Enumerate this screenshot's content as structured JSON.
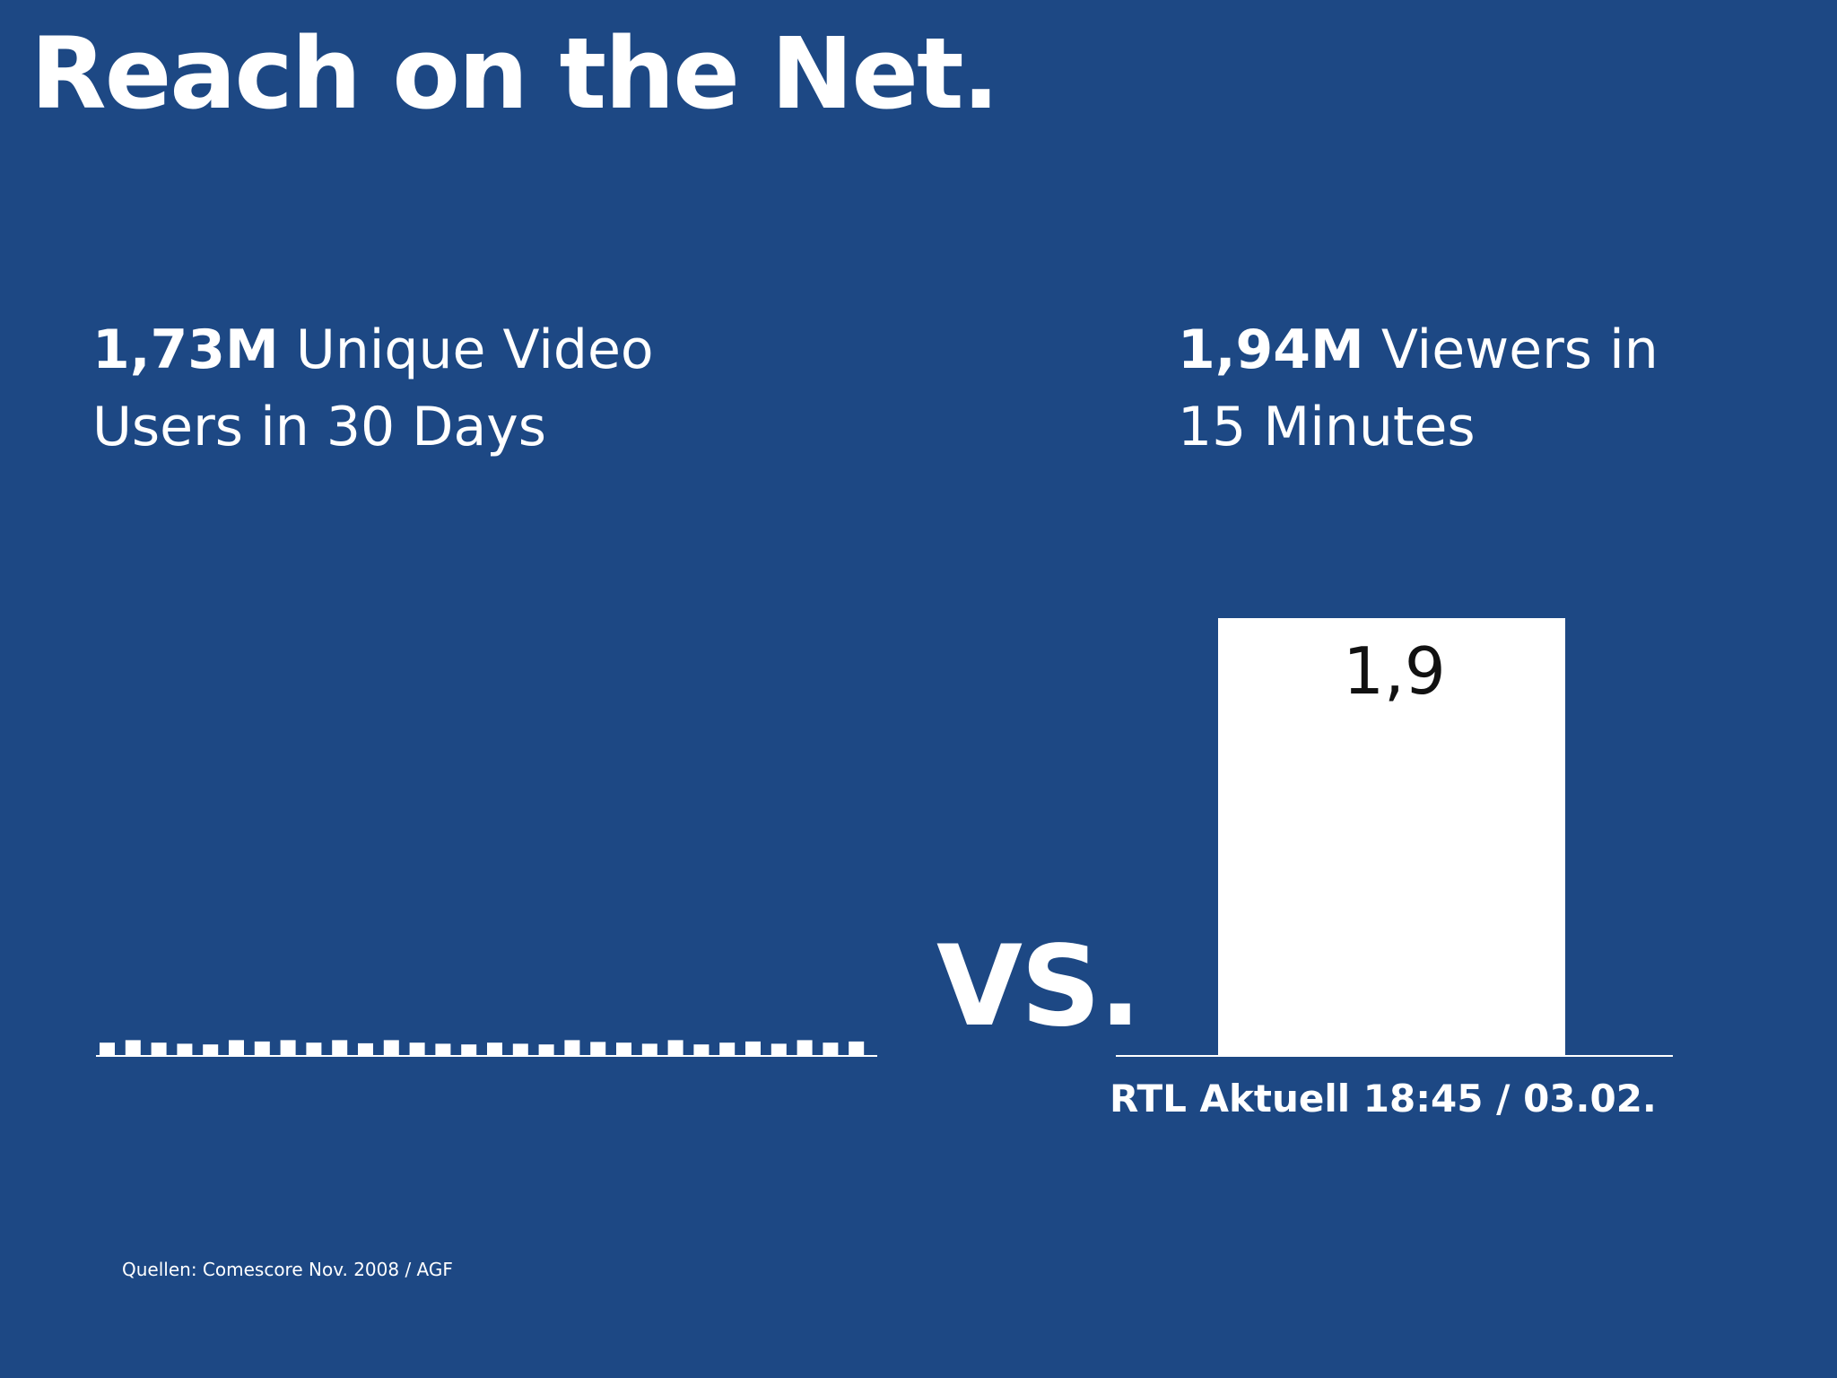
{
  "title": "Reach on the Net.",
  "left_stat": {
    "big": "1,73M",
    "rest_line1": " Unique Video",
    "line2": "Users in 30 Days"
  },
  "right_stat": {
    "big": "1,94M",
    "rest_line1": " Viewers in",
    "line2": "15 Minutes"
  },
  "vs_label": "VS.",
  "caption": "RTL Aktuell 18:45 / 03.02.",
  "source": "Quellen: Comescore Nov. 2008 / AGF",
  "colors": {
    "background": "#1d4884",
    "foreground": "#ffffff",
    "bar_label": "#111111"
  },
  "chart_data": [
    {
      "type": "bar",
      "series": [
        {
          "values": [
            0.055,
            0.066,
            0.055,
            0.05,
            0.047,
            0.066,
            0.06,
            0.066,
            0.055,
            0.066,
            0.052,
            0.066,
            0.055,
            0.05,
            0.047,
            0.055,
            0.05,
            0.047,
            0.066,
            0.058,
            0.055,
            0.05,
            0.066,
            0.047,
            0.055,
            0.06,
            0.05,
            0.066,
            0.055,
            0.06
          ]
        }
      ],
      "ylim": [
        0,
        1.94
      ]
    },
    {
      "type": "bar",
      "categories": [
        "RTL Aktuell 18:45 / 03.02."
      ],
      "values": [
        1.94
      ],
      "data_labels": [
        "1,9"
      ],
      "ylim": [
        0,
        1.94
      ]
    }
  ]
}
